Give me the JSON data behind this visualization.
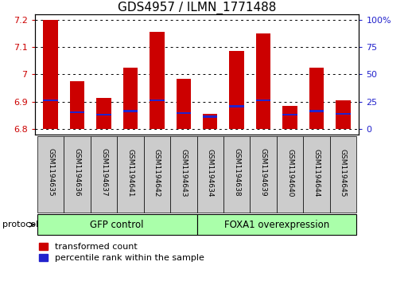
{
  "title": "GDS4957 / ILMN_1771488",
  "samples": [
    "GSM1194635",
    "GSM1194636",
    "GSM1194637",
    "GSM1194641",
    "GSM1194642",
    "GSM1194643",
    "GSM1194634",
    "GSM1194638",
    "GSM1194639",
    "GSM1194640",
    "GSM1194644",
    "GSM1194645"
  ],
  "red_values": [
    7.2,
    6.975,
    6.915,
    7.025,
    7.155,
    6.985,
    6.855,
    7.085,
    7.15,
    6.885,
    7.025,
    6.905
  ],
  "blue_values": [
    6.905,
    6.862,
    6.852,
    6.865,
    6.905,
    6.858,
    6.845,
    6.883,
    6.905,
    6.852,
    6.865,
    6.855
  ],
  "base_value": 6.8,
  "ylim_min": 6.78,
  "ylim_max": 7.22,
  "yticks": [
    6.8,
    6.9,
    7.0,
    7.1,
    7.2
  ],
  "ytick_labels": [
    "6.8",
    "6.9",
    "7",
    "7.1",
    "7.2"
  ],
  "right_yticks": [
    0,
    25,
    50,
    75,
    100
  ],
  "right_ytick_positions": [
    6.8,
    6.9,
    7.0,
    7.1,
    7.2
  ],
  "group1_label": "GFP control",
  "group2_label": "FOXA1 overexpression",
  "group1_count": 6,
  "group2_count": 6,
  "protocol_label": "protocol",
  "bar_color": "#cc0000",
  "blue_color": "#2222cc",
  "group_bg": "#aaffaa",
  "tick_bg": "#cccccc",
  "bar_width": 0.55,
  "title_fontsize": 11,
  "axis_fontsize": 8,
  "tick_fontsize": 7,
  "legend_fontsize": 8
}
